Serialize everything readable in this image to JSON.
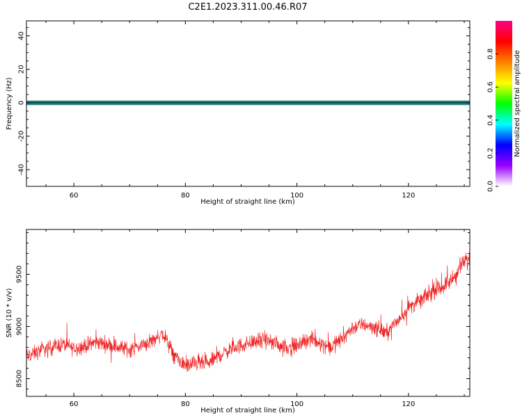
{
  "title": "C2E1.2023.311.00.46.R07",
  "chart_data": [
    {
      "type": "heatmap",
      "title": "C2E1.2023.311.00.46.R07",
      "xlabel": "Height of straight line (km)",
      "ylabel": "Frequency (Hz)",
      "xlim": [
        51.5,
        131
      ],
      "ylim": [
        -50,
        49
      ],
      "xticks": [
        60,
        80,
        100,
        120
      ],
      "yticks": [
        -40,
        -20,
        0,
        20,
        40
      ],
      "band_center_hz": 0,
      "band_halfwidth_hz": 2,
      "colorbar": {
        "label": "Normalized spectral amplitude",
        "range": [
          0,
          1
        ],
        "ticks": [
          "0.0",
          "0.2",
          "0.4",
          "0.6",
          "0.8"
        ],
        "colors": [
          "#ffffff",
          "#9900ff",
          "#0000ff",
          "#00ffff",
          "#00ff00",
          "#ffff00",
          "#ff8000",
          "#ff0000",
          "#ff0088"
        ]
      }
    },
    {
      "type": "line",
      "xlabel": "Height of straight line (km)",
      "ylabel": "SNR (10 * v/v)",
      "xlim": [
        51.5,
        131
      ],
      "ylim": [
        8330,
        9930
      ],
      "xticks": [
        60,
        80,
        100,
        120
      ],
      "yticks": [
        8500,
        9000,
        9500
      ],
      "color": "#ee2222",
      "x": [
        52,
        54,
        56,
        58,
        60,
        62,
        64,
        66,
        68,
        70,
        72,
        74,
        76,
        78,
        80,
        82,
        84,
        86,
        88,
        90,
        92,
        94,
        96,
        98,
        100,
        102,
        104,
        106,
        108,
        110,
        112,
        114,
        116,
        118,
        120,
        122,
        124,
        126,
        128,
        130,
        131
      ],
      "y": [
        8720,
        8770,
        8800,
        8830,
        8790,
        8810,
        8850,
        8830,
        8800,
        8780,
        8810,
        8870,
        8930,
        8720,
        8620,
        8650,
        8640,
        8720,
        8780,
        8820,
        8850,
        8870,
        8840,
        8800,
        8810,
        8880,
        8850,
        8800,
        8880,
        8990,
        9020,
        8990,
        8940,
        9050,
        9180,
        9250,
        9320,
        9380,
        9450,
        9620,
        9650
      ],
      "noise_amplitude": 110
    }
  ]
}
